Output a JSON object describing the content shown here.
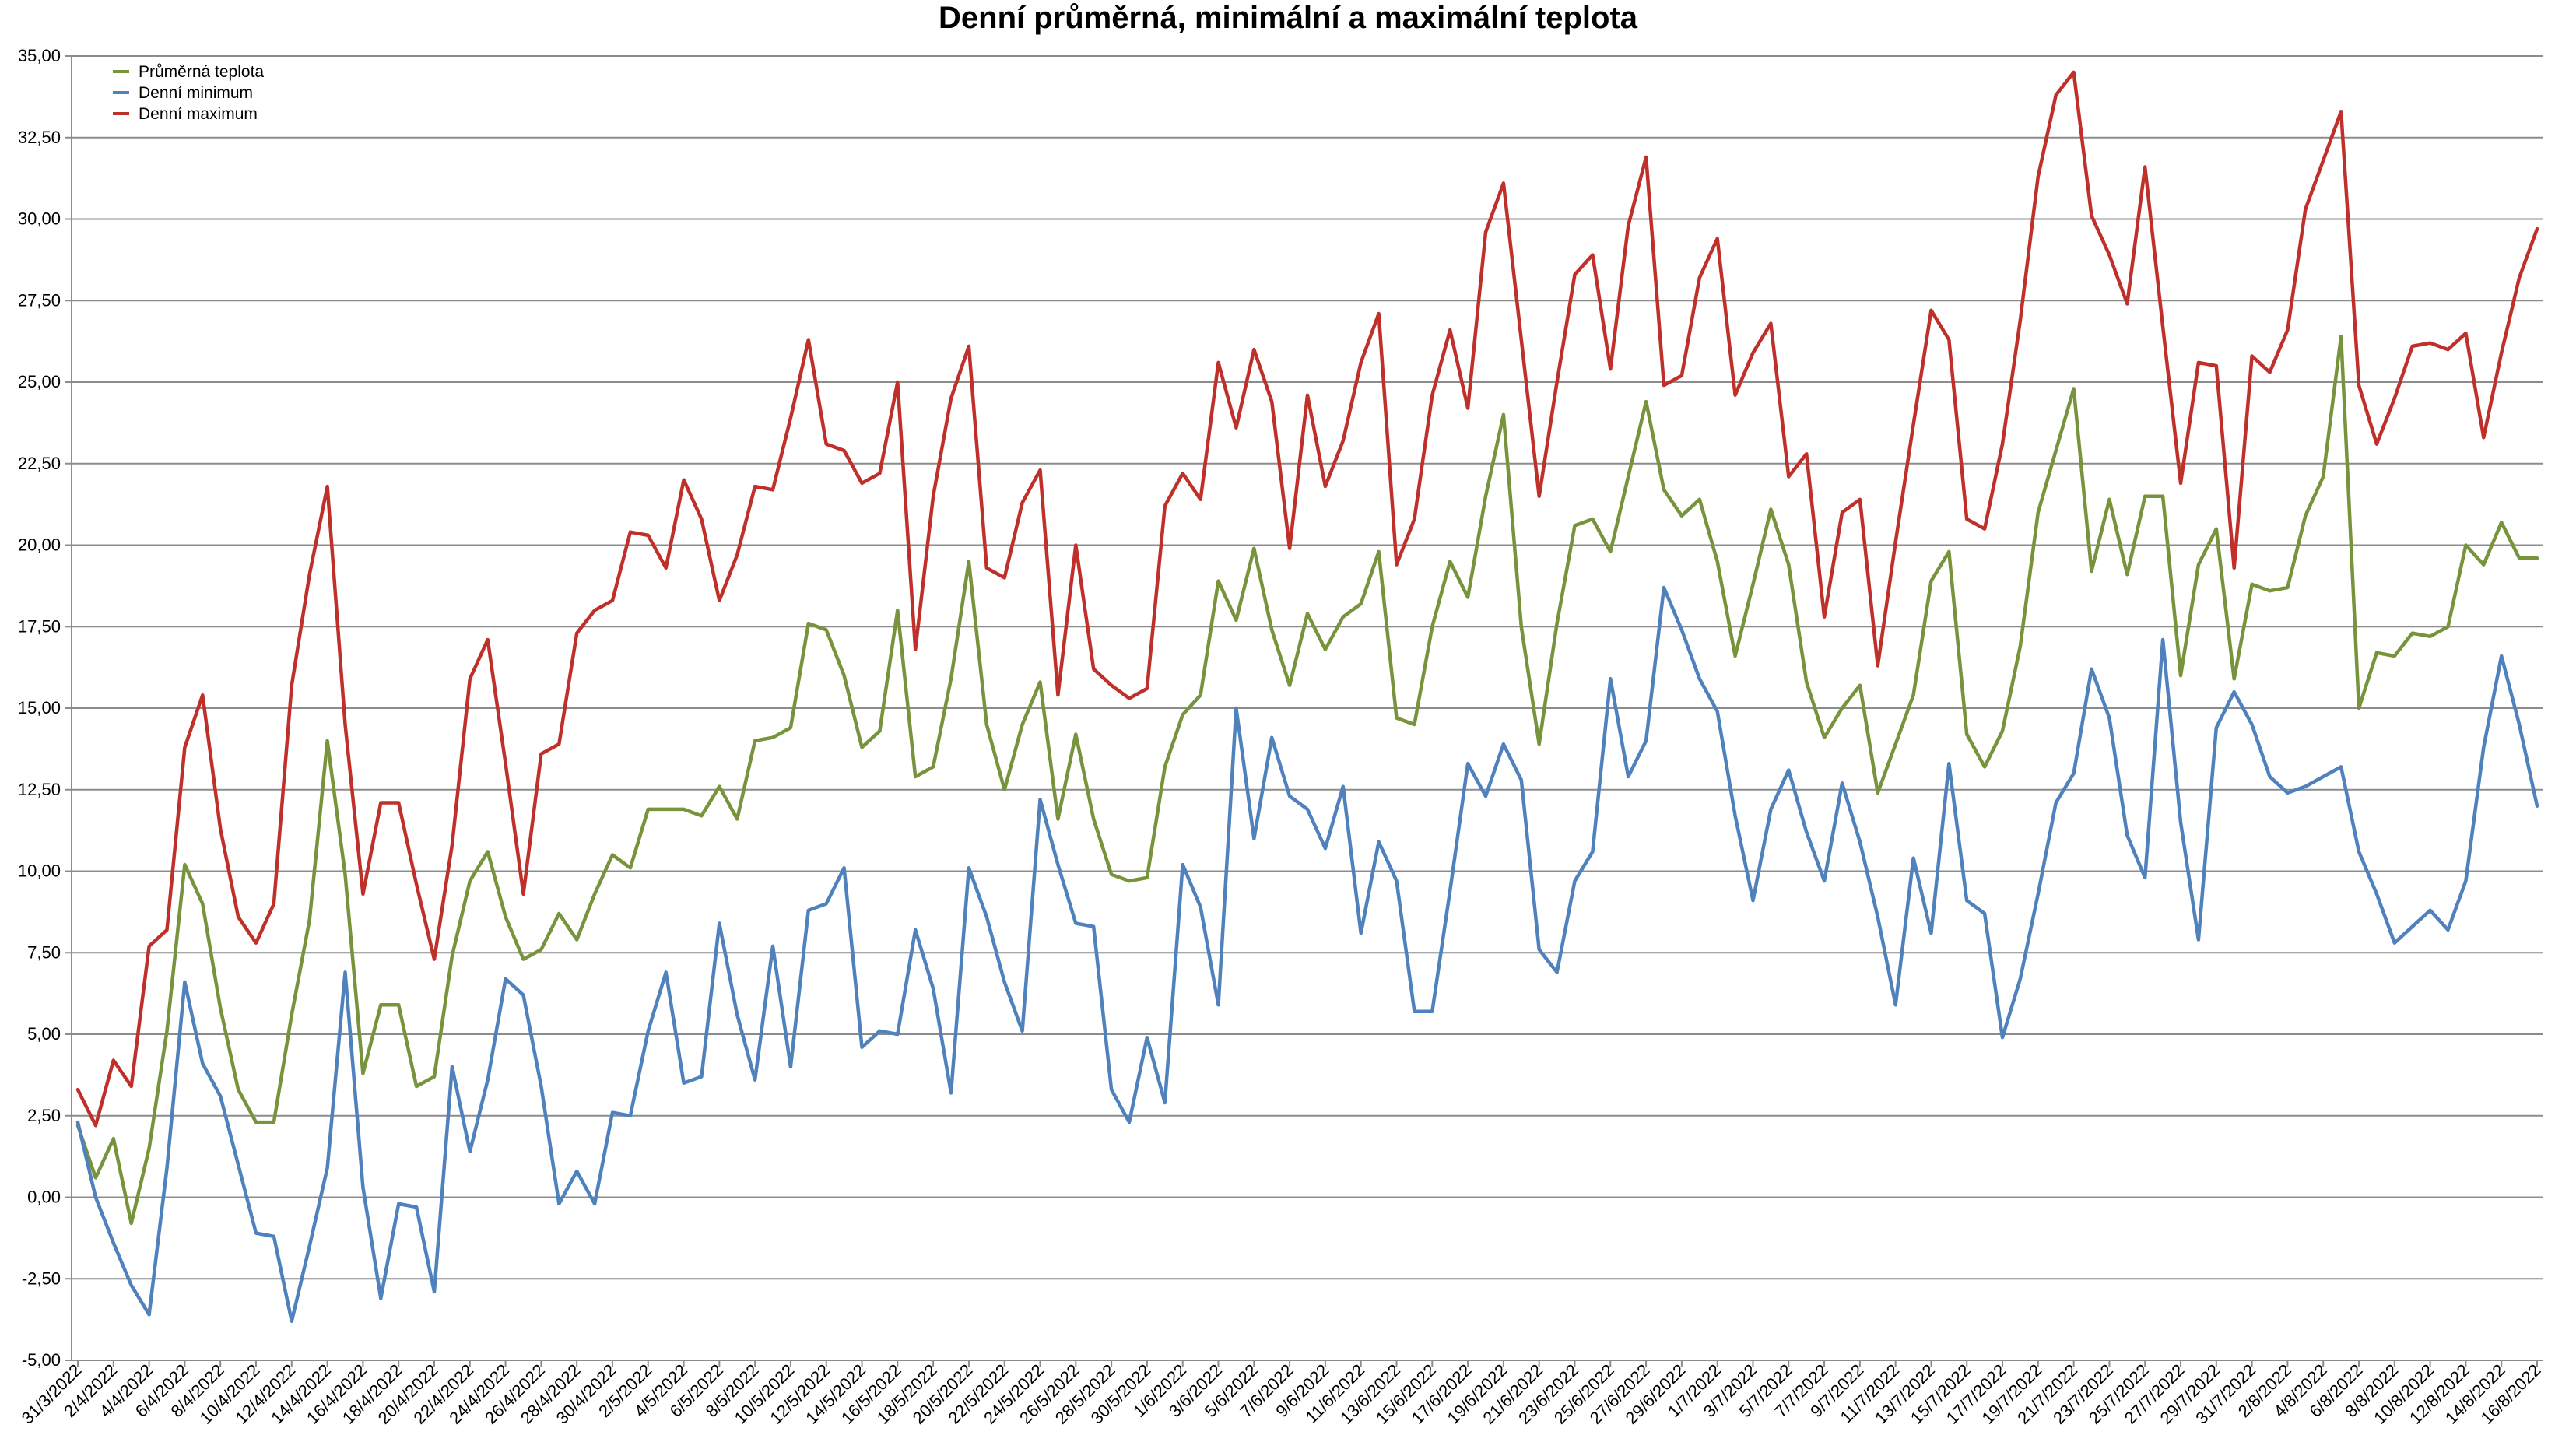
{
  "chart_data": {
    "type": "line",
    "title": "Denní průměrná, minimální a maximální teplota",
    "xlabel": "",
    "ylabel": "",
    "ylim": [
      -5,
      35
    ],
    "y_ticks": [
      "-5,00",
      "-2,50",
      "0,00",
      "2,50",
      "5,00",
      "7,50",
      "10,00",
      "12,50",
      "15,00",
      "17,50",
      "20,00",
      "22,50",
      "25,00",
      "27,50",
      "30,00",
      "32,50",
      "35,00"
    ],
    "grid": true,
    "legend_position": "top-left",
    "x_tick_labels": [
      "31/3/2022",
      "2/4/2022",
      "4/4/2022",
      "6/4/2022",
      "8/4/2022",
      "10/4/2022",
      "12/4/2022",
      "14/4/2022",
      "16/4/2022",
      "18/4/2022",
      "20/4/2022",
      "22/4/2022",
      "24/4/2022",
      "26/4/2022",
      "28/4/2022",
      "30/4/2022",
      "2/5/2022",
      "4/5/2022",
      "6/5/2022",
      "8/5/2022",
      "10/5/2022",
      "12/5/2022",
      "14/5/2022",
      "16/5/2022",
      "18/5/2022",
      "20/5/2022",
      "22/5/2022",
      "24/5/2022",
      "26/5/2022",
      "28/5/2022",
      "30/5/2022",
      "1/6/2022",
      "3/6/2022",
      "5/6/2022",
      "7/6/2022",
      "9/6/2022",
      "11/6/2022",
      "13/6/2022",
      "15/6/2022",
      "17/6/2022",
      "19/6/2022",
      "21/6/2022",
      "23/6/2022",
      "25/6/2022",
      "27/6/2022",
      "29/6/2022",
      "1/7/2022",
      "3/7/2022",
      "5/7/2022",
      "7/7/2022",
      "9/7/2022",
      "11/7/2022",
      "13/7/2022",
      "15/7/2022",
      "17/7/2022",
      "19/7/2022",
      "21/7/2022",
      "23/7/2022",
      "25/7/2022",
      "27/7/2022",
      "29/7/2022",
      "31/7/2022",
      "2/8/2022",
      "4/8/2022",
      "6/8/2022",
      "8/8/2022",
      "10/8/2022",
      "12/8/2022",
      "14/8/2022",
      "16/8/2022"
    ],
    "series": [
      {
        "name": "Průměrná teplota",
        "color": "#77933c",
        "values": [
          2.2,
          0.6,
          1.8,
          -0.8,
          1.5,
          5.1,
          10.2,
          9.0,
          5.8,
          3.3,
          2.3,
          2.3,
          5.6,
          8.5,
          14.0,
          9.9,
          3.8,
          5.9,
          5.9,
          3.4,
          3.7,
          7.4,
          9.7,
          10.6,
          8.6,
          7.3,
          7.6,
          8.7,
          7.9,
          9.3,
          10.5,
          10.1,
          11.9,
          11.9,
          11.9,
          11.7,
          12.6,
          11.6,
          14.0,
          14.1,
          14.4,
          17.6,
          17.4,
          16.0,
          13.8,
          14.3,
          18.0,
          12.9,
          13.2,
          15.9,
          19.5,
          14.5,
          12.5,
          14.5,
          15.8,
          11.6,
          14.2,
          11.6,
          9.9,
          9.7,
          9.8,
          13.2,
          14.8,
          15.4,
          18.9,
          17.7,
          19.9,
          17.4,
          15.7,
          17.9,
          16.8,
          17.8,
          18.2,
          19.8,
          14.7,
          14.5,
          17.5,
          19.5,
          18.4,
          21.5,
          24.0,
          17.5,
          13.9,
          17.6,
          20.6,
          20.8,
          19.8,
          22.1,
          24.4,
          21.7,
          20.9,
          21.4,
          19.5,
          16.6,
          18.8,
          21.1,
          19.4,
          15.8,
          14.1,
          15.0,
          15.7,
          12.4,
          13.9,
          15.4,
          18.9,
          19.8,
          14.2,
          13.2,
          14.3,
          16.9,
          21.0,
          22.9,
          24.8,
          19.2,
          21.4,
          19.1,
          21.5,
          21.5,
          16.0,
          19.4,
          20.5,
          15.9,
          18.8,
          18.6,
          18.7,
          20.9,
          22.1,
          26.4,
          15.0,
          16.7,
          16.6,
          17.3,
          17.2,
          17.5,
          20.0,
          19.4,
          20.7,
          19.6,
          19.6
        ]
      },
      {
        "name": "Denní minimum",
        "color": "#4f81bd",
        "values": [
          2.3,
          0.0,
          -1.4,
          -2.7,
          -3.6,
          0.9,
          6.6,
          4.1,
          3.1,
          1.0,
          -1.1,
          -1.2,
          -3.8,
          -1.5,
          0.9,
          6.9,
          0.3,
          -3.1,
          -0.2,
          -0.3,
          -2.9,
          4.0,
          1.4,
          3.6,
          6.7,
          6.2,
          3.4,
          -0.2,
          0.8,
          -0.2,
          2.6,
          2.5,
          5.1,
          6.9,
          3.5,
          3.7,
          8.4,
          5.6,
          3.6,
          7.7,
          4.0,
          8.8,
          9.0,
          10.1,
          4.6,
          5.1,
          5.0,
          8.2,
          6.4,
          3.2,
          10.1,
          8.6,
          6.6,
          5.1,
          12.2,
          10.2,
          8.4,
          8.3,
          3.3,
          2.3,
          4.9,
          2.9,
          10.2,
          8.9,
          5.9,
          15.0,
          11.0,
          14.1,
          12.3,
          11.9,
          10.7,
          12.6,
          8.1,
          10.9,
          9.7,
          5.7,
          5.7,
          9.4,
          13.3,
          12.3,
          13.9,
          12.8,
          7.6,
          6.9,
          9.7,
          10.6,
          15.9,
          12.9,
          14.0,
          18.7,
          17.4,
          15.9,
          14.9,
          11.7,
          9.1,
          11.9,
          13.1,
          11.2,
          9.7,
          12.7,
          10.9,
          8.6,
          5.9,
          10.4,
          8.1,
          13.3,
          9.1,
          8.7,
          4.9,
          6.7,
          9.3,
          12.1,
          13.0,
          16.2,
          14.7,
          11.1,
          9.8,
          17.1,
          11.5,
          7.9,
          14.4,
          15.5,
          14.5,
          12.9,
          12.4,
          12.6,
          12.9,
          13.2,
          10.6,
          9.3,
          7.8,
          8.3,
          8.8,
          8.2,
          9.7,
          13.8,
          16.6,
          14.5,
          12.0
        ]
      },
      {
        "name": "Denní maximum",
        "color": "#c0302b",
        "values": [
          3.3,
          2.2,
          4.2,
          3.4,
          7.7,
          8.2,
          13.8,
          15.4,
          11.3,
          8.6,
          7.8,
          9.0,
          15.7,
          19.1,
          21.8,
          14.5,
          9.3,
          12.1,
          12.1,
          9.6,
          7.3,
          10.8,
          15.9,
          17.1,
          13.3,
          9.3,
          13.6,
          13.9,
          17.3,
          18.0,
          18.3,
          20.4,
          20.3,
          19.3,
          22.0,
          20.8,
          18.3,
          19.7,
          21.8,
          21.7,
          23.9,
          26.3,
          23.1,
          22.9,
          21.9,
          22.2,
          25.0,
          16.8,
          21.5,
          24.5,
          26.1,
          19.3,
          19.0,
          21.3,
          22.3,
          15.4,
          20.0,
          16.2,
          15.7,
          15.3,
          15.6,
          21.2,
          22.2,
          21.4,
          25.6,
          23.6,
          26.0,
          24.4,
          19.9,
          24.6,
          21.8,
          23.2,
          25.6,
          27.1,
          19.4,
          20.8,
          24.6,
          26.6,
          24.2,
          29.6,
          31.1,
          26.3,
          21.5,
          25.0,
          28.3,
          28.9,
          25.4,
          29.8,
          31.9,
          24.9,
          25.2,
          28.2,
          29.4,
          24.6,
          25.9,
          26.8,
          22.1,
          22.8,
          17.8,
          21.0,
          21.4,
          16.3,
          20.1,
          23.7,
          27.2,
          26.3,
          20.8,
          20.5,
          23.1,
          26.9,
          31.3,
          33.8,
          34.5,
          30.1,
          28.9,
          27.4,
          31.6,
          26.7,
          21.9,
          25.6,
          25.5,
          19.3,
          25.8,
          25.3,
          26.6,
          30.3,
          31.8,
          33.3,
          24.9,
          23.1,
          24.5,
          26.1,
          26.2,
          26.0,
          26.5,
          23.3,
          25.9,
          28.2,
          29.7
        ]
      }
    ]
  }
}
